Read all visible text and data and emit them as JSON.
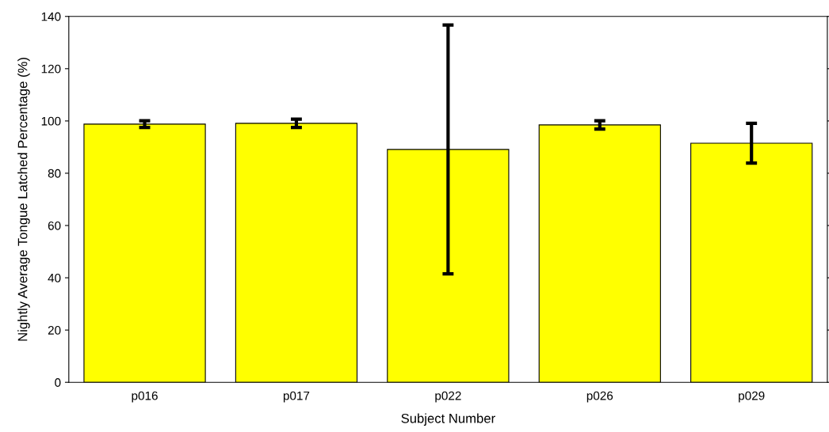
{
  "chart_data": {
    "type": "bar",
    "xlabel": "Subject Number",
    "ylabel": "Nightly Average Tongue Latched Percentage (%)",
    "categories": [
      "p016",
      "p017",
      "p022",
      "p026",
      "p029"
    ],
    "values": [
      98.8,
      99.1,
      89.1,
      98.5,
      91.5
    ],
    "errors": [
      1.3,
      1.6,
      47.6,
      1.6,
      7.6
    ],
    "color": "#ffff00",
    "ylim": [
      0,
      140
    ],
    "yticks": [
      0,
      20,
      40,
      60,
      80,
      100,
      120,
      140
    ],
    "grid": false
  }
}
